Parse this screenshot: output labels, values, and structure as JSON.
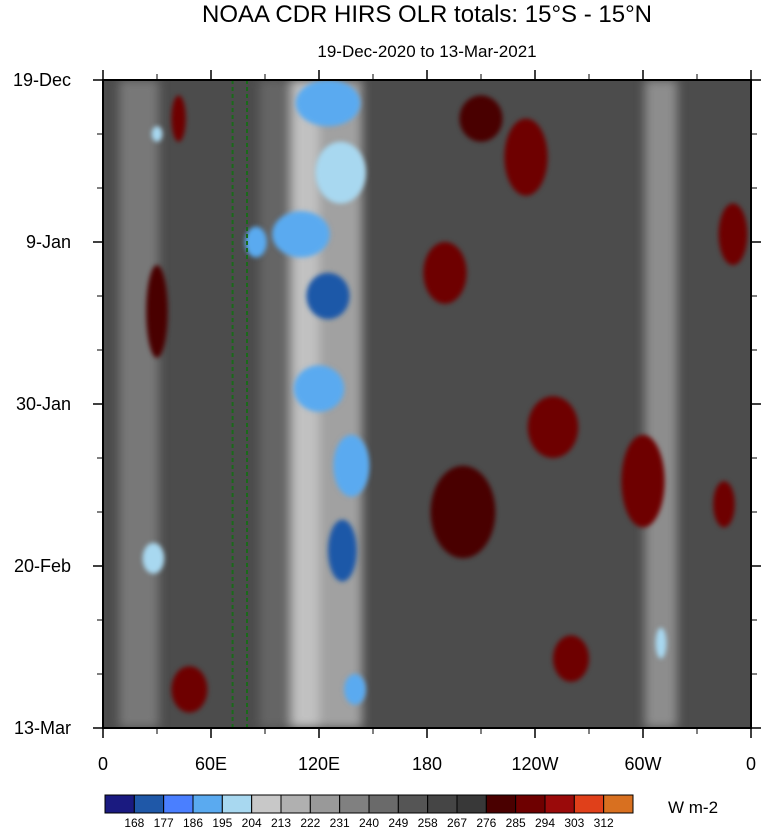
{
  "chart_data": {
    "type": "heatmap",
    "title": "NOAA CDR HIRS OLR totals: 15°S - 15°N",
    "subtitle": "19-Dec-2020 to 13-Mar-2021",
    "x_ticks": [
      {
        "label": "0",
        "lon": 0
      },
      {
        "label": "60E",
        "lon": 60
      },
      {
        "label": "120E",
        "lon": 120
      },
      {
        "label": "180",
        "lon": 180
      },
      {
        "label": "120W",
        "lon": 240
      },
      {
        "label": "60W",
        "lon": 300
      },
      {
        "label": "0",
        "lon": 360
      }
    ],
    "xlim": [
      0,
      360
    ],
    "y_ticks": [
      {
        "label": "19-Dec",
        "day": 0
      },
      {
        "label": "9-Jan",
        "day": 21
      },
      {
        "label": "30-Jan",
        "day": 42
      },
      {
        "label": "20-Feb",
        "day": 63
      },
      {
        "label": "13-Mar",
        "day": 84
      }
    ],
    "ylim": [
      0,
      84
    ],
    "colorbar": {
      "unit": "W m-2",
      "levels": [
        "168",
        "177",
        "186",
        "195",
        "204",
        "213",
        "222",
        "231",
        "240",
        "249",
        "258",
        "267",
        "276",
        "285",
        "294",
        "303",
        "312"
      ],
      "colors": [
        "#1a1a80",
        "#1f58a8",
        "#4a7fff",
        "#5aaaf0",
        "#a8d8f0",
        "#c8c8c8",
        "#b0b0b0",
        "#999999",
        "#808080",
        "#6a6a6a",
        "#555555",
        "#454545",
        "#383838",
        "#4a0000",
        "#6e0000",
        "#9a0a0a",
        "#e0401a",
        "#d87020"
      ]
    },
    "reference_lines": [
      {
        "lon": 72
      },
      {
        "lon": 80
      }
    ],
    "features": [
      {
        "lon": 125,
        "day": 3,
        "wlon": 18,
        "wday": 3,
        "v": 188
      },
      {
        "lon": 132,
        "day": 12,
        "wlon": 14,
        "wday": 4,
        "v": 195
      },
      {
        "lon": 110,
        "day": 20,
        "wlon": 16,
        "wday": 3,
        "v": 193
      },
      {
        "lon": 85,
        "day": 21,
        "wlon": 6,
        "wday": 2,
        "v": 188
      },
      {
        "lon": 125,
        "day": 28,
        "wlon": 12,
        "wday": 3,
        "v": 170
      },
      {
        "lon": 120,
        "day": 40,
        "wlon": 14,
        "wday": 3,
        "v": 190
      },
      {
        "lon": 138,
        "day": 50,
        "wlon": 10,
        "wday": 4,
        "v": 190
      },
      {
        "lon": 133,
        "day": 61,
        "wlon": 8,
        "wday": 4,
        "v": 172
      },
      {
        "lon": 140,
        "day": 79,
        "wlon": 6,
        "wday": 2,
        "v": 190
      },
      {
        "lon": 28,
        "day": 62,
        "wlon": 6,
        "wday": 2,
        "v": 195
      },
      {
        "lon": 310,
        "day": 73,
        "wlon": 3,
        "wday": 2,
        "v": 200
      },
      {
        "lon": 30,
        "day": 7,
        "wlon": 3,
        "wday": 1,
        "v": 200
      },
      {
        "lon": 190,
        "day": 25,
        "wlon": 12,
        "wday": 4,
        "v": 290
      },
      {
        "lon": 250,
        "day": 45,
        "wlon": 14,
        "wday": 4,
        "v": 288
      },
      {
        "lon": 235,
        "day": 10,
        "wlon": 12,
        "wday": 5,
        "v": 286
      },
      {
        "lon": 210,
        "day": 5,
        "wlon": 12,
        "wday": 3,
        "v": 284
      },
      {
        "lon": 300,
        "day": 52,
        "wlon": 12,
        "wday": 6,
        "v": 286
      },
      {
        "lon": 200,
        "day": 56,
        "wlon": 18,
        "wday": 6,
        "v": 284
      },
      {
        "lon": 48,
        "day": 79,
        "wlon": 10,
        "wday": 3,
        "v": 290
      },
      {
        "lon": 260,
        "day": 75,
        "wlon": 10,
        "wday": 3,
        "v": 286
      },
      {
        "lon": 350,
        "day": 20,
        "wlon": 8,
        "wday": 4,
        "v": 288
      },
      {
        "lon": 345,
        "day": 55,
        "wlon": 6,
        "wday": 3,
        "v": 286
      },
      {
        "lon": 42,
        "day": 5,
        "wlon": 4,
        "wday": 3,
        "v": 288
      },
      {
        "lon": 30,
        "day": 30,
        "wlon": 6,
        "wday": 6,
        "v": 284
      }
    ]
  }
}
